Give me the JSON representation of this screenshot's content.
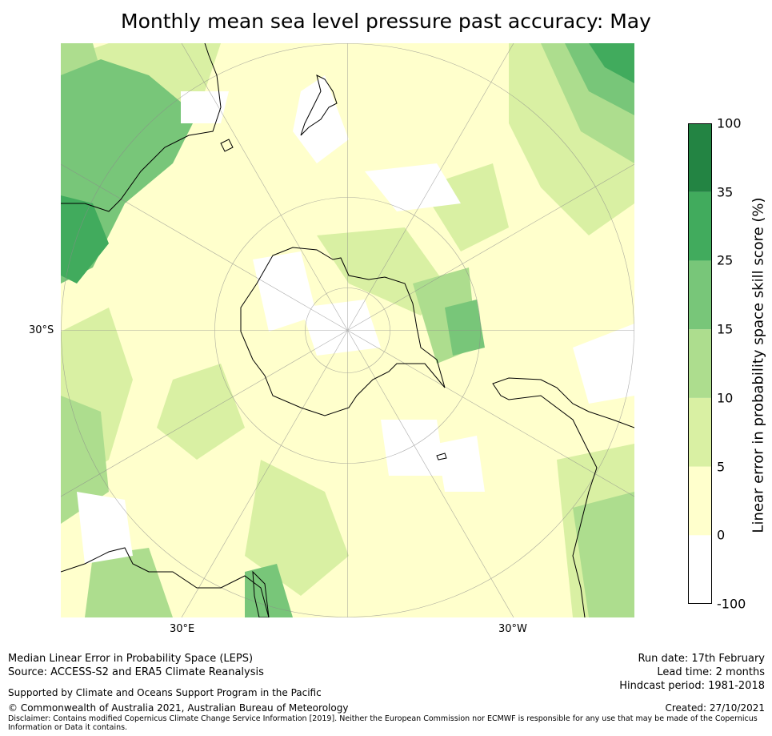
{
  "title": "Monthly mean sea level pressure past accuracy: May",
  "map": {
    "projection": "south-polar-stereographic",
    "lat_labels": [
      "30°S"
    ],
    "lon_labels": [
      "30°E",
      "30°W"
    ],
    "features": [
      "antarctica",
      "australia",
      "new-zealand",
      "south-america",
      "southern-africa",
      "falkland-islands",
      "madagascar"
    ]
  },
  "colorbar": {
    "label": "Linear error in probability space skill score (%)",
    "ticks": [
      "100",
      "35",
      "25",
      "15",
      "10",
      "5",
      "0",
      "-100"
    ],
    "bins": [
      {
        "range": "-100 to 0",
        "color": "#ffffff"
      },
      {
        "range": "0 to 5",
        "color": "#ffffcc"
      },
      {
        "range": "5 to 10",
        "color": "#d9f0a3"
      },
      {
        "range": "10 to 15",
        "color": "#addd8e"
      },
      {
        "range": "15 to 25",
        "color": "#78c679"
      },
      {
        "range": "25 to 35",
        "color": "#41ab5d"
      },
      {
        "range": "35 to 100",
        "color": "#238443"
      }
    ]
  },
  "footer": {
    "method": "Median Linear Error in Probability Space (LEPS)",
    "source": "Source: ACCESS-S2 and ERA5 Climate Reanalysis",
    "support": "Supported by Climate and Oceans Support Program in the Pacific",
    "copyright": "© Commonwealth of Australia 2021, Australian Bureau of Meteorology",
    "disclaimer": "Disclaimer: Contains modified Copernicus Climate Change Service Information [2019]. Neither the European Commission nor ECMWF is responsible for any use that may be made of the Copernicus Information or Data it contains.",
    "run_date": "Run date: 17th February",
    "lead_time": "Lead time: 2 months",
    "hindcast": "Hindcast period: 1981-2018",
    "created": "Created: 27/10/2021"
  }
}
